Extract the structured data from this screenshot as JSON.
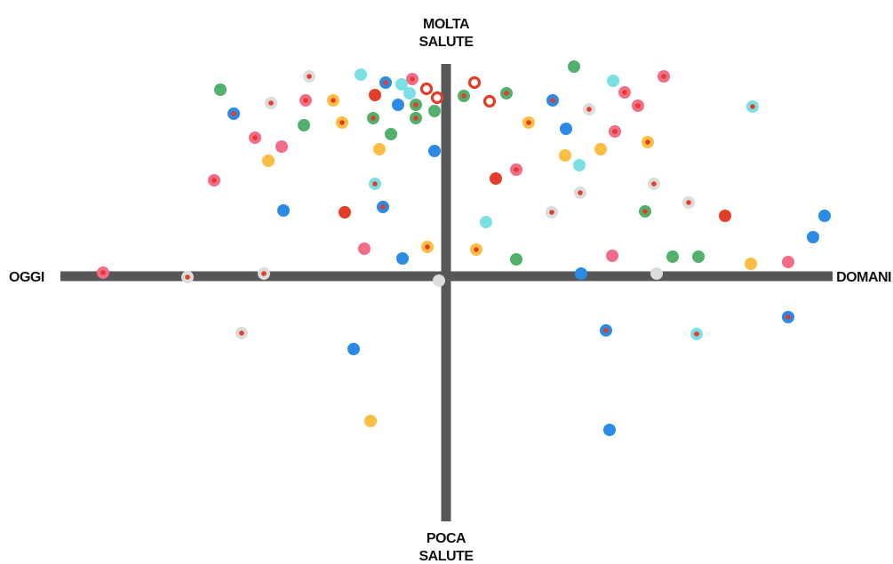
{
  "chart_data": {
    "type": "scatter",
    "top_label": [
      "MOLTA",
      "SALUTE"
    ],
    "bottom_label": [
      "POCA",
      "SALUTE"
    ],
    "left_label": "OGGI",
    "right_label": "DOMANI",
    "xlim": [
      -434,
      435
    ],
    "ylim": [
      -276,
      239
    ],
    "center_color": "#e53c28",
    "x": [
      -254,
      -239,
      -197,
      -154,
      -158,
      -127,
      -96,
      -68,
      -38,
      -50,
      -80,
      -41,
      -22,
      -10,
      -54,
      -34,
      -82,
      -34,
      -13,
      -117,
      -160,
      -215,
      -185,
      -200,
      -62,
      -75,
      -13,
      -261,
      -80,
      -183,
      -114,
      -71,
      -92,
      -49,
      -21,
      -386,
      -291,
      -205,
      -8,
      -230,
      -104,
      -85,
      32,
      20,
      49,
      68,
      144,
      188,
      201,
      245,
      120,
      161,
      216,
      345,
      93,
      135,
      190,
      227,
      174,
      134,
      150,
      79,
      56,
      234,
      151,
      119,
      224,
      273,
      314,
      426,
      45,
      413,
      34,
      79,
      187,
      255,
      284,
      343,
      385,
      152,
      237,
      180,
      282,
      385,
      184
    ],
    "y": [
      210,
      183,
      195,
      225,
      198,
      198,
      227,
      218,
      222,
      216,
      204,
      206,
      211,
      201,
      193,
      193,
      178,
      178,
      186,
      173,
      170,
      156,
      146,
      130,
      160,
      143,
      141,
      108,
      104,
      74,
      72,
      78,
      31,
      20,
      33,
      4,
      -1,
      3,
      -5,
      -64,
      -82,
      -163,
      218,
      203,
      197,
      206,
      236,
      220,
      207,
      225,
      198,
      188,
      192,
      191,
      173,
      166,
      163,
      151,
      143,
      136,
      125,
      120,
      110,
      104,
      94,
      72,
      73,
      83,
      68,
      68,
      61,
      44,
      30,
      19,
      23,
      22,
      22,
      14,
      16,
      3,
      3,
      -61,
      -65,
      -46,
      -173
    ],
    "colors": [
      "#52b06a",
      "#2a8ae6",
      "#dcdcdc",
      "#dcdcdc",
      "#f26b88",
      "#fbbd44",
      "#7ddfe6",
      "#2a8ae6",
      "#f26b88",
      "#7ddfe6",
      "#e53c28",
      "#7ddfe6",
      "#e53c28",
      "#e53c28",
      "#2a8ae6",
      "#52b06a",
      "#52b06a",
      "#52b06a",
      "#52b06a",
      "#fbbd44",
      "#52b06a",
      "#f26b88",
      "#f26b88",
      "#fbbd44",
      "#52b06a",
      "#fbbd44",
      "#2a8ae6",
      "#f26b88",
      "#7ddfe6",
      "#2a8ae6",
      "#e53c28",
      "#2a8ae6",
      "#f26b88",
      "#2a8ae6",
      "#fbbd44",
      "#f26b88",
      "#dcdcdc",
      "#dcdcdc",
      "#dcdcdc",
      "#dcdcdc",
      "#2a8ae6",
      "#fbbd44",
      "#e53c28",
      "#52b06a",
      "#e53c28",
      "#52b06a",
      "#52b06a",
      "#7ddfe6",
      "#f26b88",
      "#f26b88",
      "#2a8ae6",
      "#dcdcdc",
      "#f26b88",
      "#7ddfe6",
      "#fbbd44",
      "#2a8ae6",
      "#f26b88",
      "#fbbd44",
      "#fbbd44",
      "#fbbd44",
      "#7ddfe6",
      "#f26b88",
      "#e53c28",
      "#dcdcdc",
      "#dcdcdc",
      "#dcdcdc",
      "#52b06a",
      "#dcdcdc",
      "#e53c28",
      "#2a8ae6",
      "#7ddfe6",
      "#2a8ae6",
      "#fbbd44",
      "#52b06a",
      "#f26b88",
      "#52b06a",
      "#52b06a",
      "#fbbd44",
      "#f26b88",
      "#2a8ae6",
      "#dcdcdc",
      "#2a8ae6",
      "#7ddfe6",
      "#2a8ae6",
      "#2a8ae6"
    ],
    "styles": [
      "dot",
      "center",
      "center",
      "center",
      "center",
      "center",
      "dot",
      "center",
      "center",
      "dot",
      "dot",
      "dot",
      "ring",
      "ring",
      "dot",
      "center",
      "center",
      "center",
      "dot",
      "center",
      "dot",
      "center",
      "dot",
      "dot",
      "dot",
      "dot",
      "dot",
      "center",
      "center",
      "dot",
      "dot",
      "center",
      "dot",
      "dot",
      "center",
      "center",
      "center",
      "center",
      "dot",
      "center",
      "dot",
      "dot",
      "ring",
      "center",
      "ring",
      "center",
      "dot",
      "dot",
      "center",
      "center",
      "center",
      "center",
      "center",
      "center",
      "center",
      "dot",
      "center",
      "center",
      "dot",
      "dot",
      "dot",
      "center",
      "dot",
      "center",
      "center",
      "center",
      "center",
      "center",
      "dot",
      "dot",
      "dot",
      "dot",
      "center",
      "dot",
      "dot",
      "dot",
      "dot",
      "dot",
      "dot",
      "dot",
      "dot",
      "center",
      "center",
      "center",
      "dot"
    ]
  }
}
